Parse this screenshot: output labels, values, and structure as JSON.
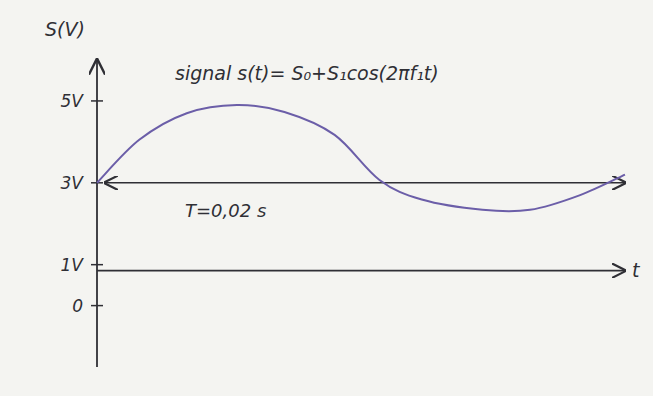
{
  "chart_data": {
    "type": "line",
    "title": "signal s(t)= S₀+S₁cos(2πf₁t)",
    "y_label": "S(V)",
    "x_label": "t",
    "annotations": [
      "T=0,02 s"
    ],
    "x": [
      0,
      0.0016,
      0.0034,
      0.0053,
      0.0071,
      0.009,
      0.0107,
      0.0123,
      0.0146,
      0.0164,
      0.0183,
      0.02
    ],
    "values": [
      3.0,
      4.05,
      4.7,
      4.9,
      4.73,
      4.17,
      3.07,
      2.59,
      2.34,
      2.34,
      2.7,
      3.2
    ],
    "color": "#6b5ea8",
    "xlim": [
      0,
      0.02
    ],
    "ylim": [
      -1.5,
      6
    ],
    "yticks": [
      {
        "value": 0,
        "label": "0"
      },
      {
        "value": 1,
        "label": "1V"
      },
      {
        "value": 3,
        "label": "3V"
      },
      {
        "value": 5,
        "label": "5V"
      }
    ],
    "tick_labels": "y",
    "grid": false
  }
}
